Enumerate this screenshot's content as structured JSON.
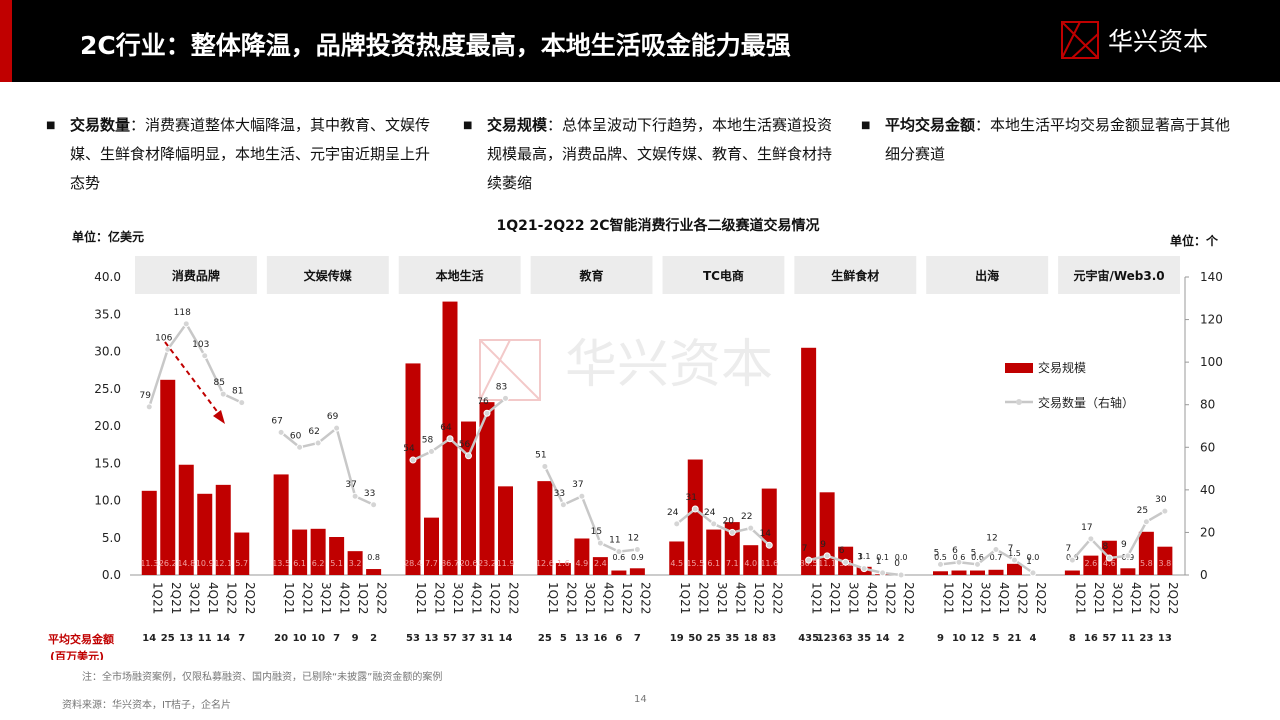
{
  "header": {
    "title": "2C行业：整体降温，品牌投资热度最高，本地生活吸金能力最强",
    "logo_text": "华兴资本"
  },
  "bullets": [
    {
      "label": "交易数量",
      "text": "：消费赛道整体大幅降温，其中教育、文娱传媒、生鲜食材降幅明显，本地生活、元宇宙近期呈上升态势"
    },
    {
      "label": "交易规模",
      "text": "：总体呈波动下行趋势，本地生活赛道投资规模最高，消费品牌、文娱传媒、教育、生鲜食材持续萎缩"
    },
    {
      "label": "平均交易金额",
      "text": "：本地生活平均交易金额显著高于其他细分赛道"
    }
  ],
  "chart_data": {
    "type": "bar",
    "title": "1Q21-2Q22 2C智能消费行业各二级赛道交易情况",
    "ylabel_left": "单位：亿美元",
    "ylabel_right": "单位：个",
    "ylim_left": [
      0,
      40
    ],
    "ylim_right": [
      0,
      140
    ],
    "left_ticks": [
      "0.0",
      "5.0",
      "10.0",
      "15.0",
      "20.0",
      "25.0",
      "30.0",
      "35.0",
      "40.0"
    ],
    "right_ticks": [
      "0",
      "20",
      "40",
      "60",
      "80",
      "100",
      "120",
      "140"
    ],
    "quarters": [
      "1Q21",
      "2Q21",
      "3Q21",
      "4Q21",
      "1Q22",
      "2Q22"
    ],
    "legend": {
      "bar": "交易规模",
      "line": "交易数量（右轴）"
    },
    "avg_label": "平均交易金额",
    "avg_unit": "(百万美元)",
    "groups": [
      {
        "name": "消费品牌",
        "amounts": [
          11.3,
          26.2,
          14.8,
          10.9,
          12.1,
          5.7
        ],
        "amount_labels": [
          "11.3",
          "26.2",
          "14.8",
          "10.9",
          "12.1",
          "5.7"
        ],
        "counts": [
          79,
          106,
          118,
          103,
          85,
          81
        ],
        "avg": [
          "14",
          "25",
          "13",
          "11",
          "14",
          "7"
        ]
      },
      {
        "name": "文娱传媒",
        "amounts": [
          13.5,
          6.1,
          6.2,
          5.1,
          3.2,
          0.8
        ],
        "amount_labels": [
          "13.5",
          "6.1",
          "6.2",
          "5.1",
          "3.2",
          "0.8"
        ],
        "counts": [
          67,
          60,
          62,
          69,
          37,
          33
        ],
        "avg": [
          "20",
          "10",
          "10",
          "7",
          "9",
          "2"
        ]
      },
      {
        "name": "本地生活",
        "amounts": [
          28.4,
          7.7,
          36.7,
          20.6,
          23.2,
          11.9
        ],
        "amount_labels": [
          "28.4",
          "7.7",
          "36.7",
          "20.6",
          "23.2",
          "11.9"
        ],
        "counts": [
          54,
          58,
          64,
          56,
          76,
          83
        ],
        "avg": [
          "53",
          "13",
          "57",
          "37",
          "31",
          "14"
        ]
      },
      {
        "name": "教育",
        "amounts": [
          12.6,
          1.6,
          4.9,
          2.4,
          0.6,
          0.9
        ],
        "amount_labels": [
          "12.6",
          "1.6",
          "4.9",
          "2.4",
          "0.6",
          "0.9"
        ],
        "counts": [
          51,
          33,
          37,
          15,
          11,
          12
        ],
        "avg": [
          "25",
          "5",
          "13",
          "16",
          "6",
          "7"
        ]
      },
      {
        "name": "TC电商",
        "amounts": [
          4.5,
          15.5,
          6.1,
          7.1,
          4.0,
          11.6
        ],
        "amount_labels": [
          "4.5",
          "15.5",
          "6.1",
          "7.1",
          "4.0",
          "11.6"
        ],
        "counts": [
          24,
          31,
          24,
          20,
          22,
          14
        ],
        "avg": [
          "19",
          "50",
          "25",
          "35",
          "18",
          "83"
        ]
      },
      {
        "name": "生鲜食材",
        "amounts": [
          30.5,
          11.1,
          3.8,
          1.1,
          0.1,
          0.0
        ],
        "amount_labels": [
          "30.5",
          "11.1",
          "3.8",
          "1.1",
          "0.1",
          "0.0"
        ],
        "counts": [
          7,
          9,
          6,
          3,
          1,
          0
        ],
        "avg": [
          "435",
          "123",
          "63",
          "35",
          "14",
          "2"
        ]
      },
      {
        "name": "出海",
        "amounts": [
          0.5,
          0.6,
          0.6,
          0.7,
          1.5,
          0.0
        ],
        "amount_labels": [
          "0.5",
          "0.6",
          "0.6",
          "0.7",
          "1.5",
          "0.0"
        ],
        "counts": [
          5,
          6,
          5,
          12,
          7,
          1
        ],
        "avg": [
          "9",
          "10",
          "12",
          "5",
          "21",
          "4"
        ]
      },
      {
        "name": "元宇宙/Web3.0",
        "amounts": [
          0.6,
          2.6,
          4.6,
          0.9,
          5.8,
          3.8
        ],
        "amount_labels": [
          "0.6",
          "2.6",
          "4.6",
          "0.9",
          "5.8",
          "3.8"
        ],
        "counts": [
          7,
          17,
          8,
          9,
          25,
          30
        ],
        "avg": [
          "8",
          "16",
          "57",
          "11",
          "23",
          "13"
        ]
      }
    ],
    "grid": false,
    "legend_position": "right"
  },
  "footer": {
    "note": "注：全市场融资案例，仅限私募融资、国内融资，已剔除“未披露”融资金额的案例",
    "source": "资料来源：华兴资本，IT桔子，企名片",
    "page": "14"
  },
  "colors": {
    "bar": "#c00000",
    "line": "#c8c8c8",
    "category_box": "#ececec",
    "header": "#000000",
    "accent": "#c00000"
  }
}
